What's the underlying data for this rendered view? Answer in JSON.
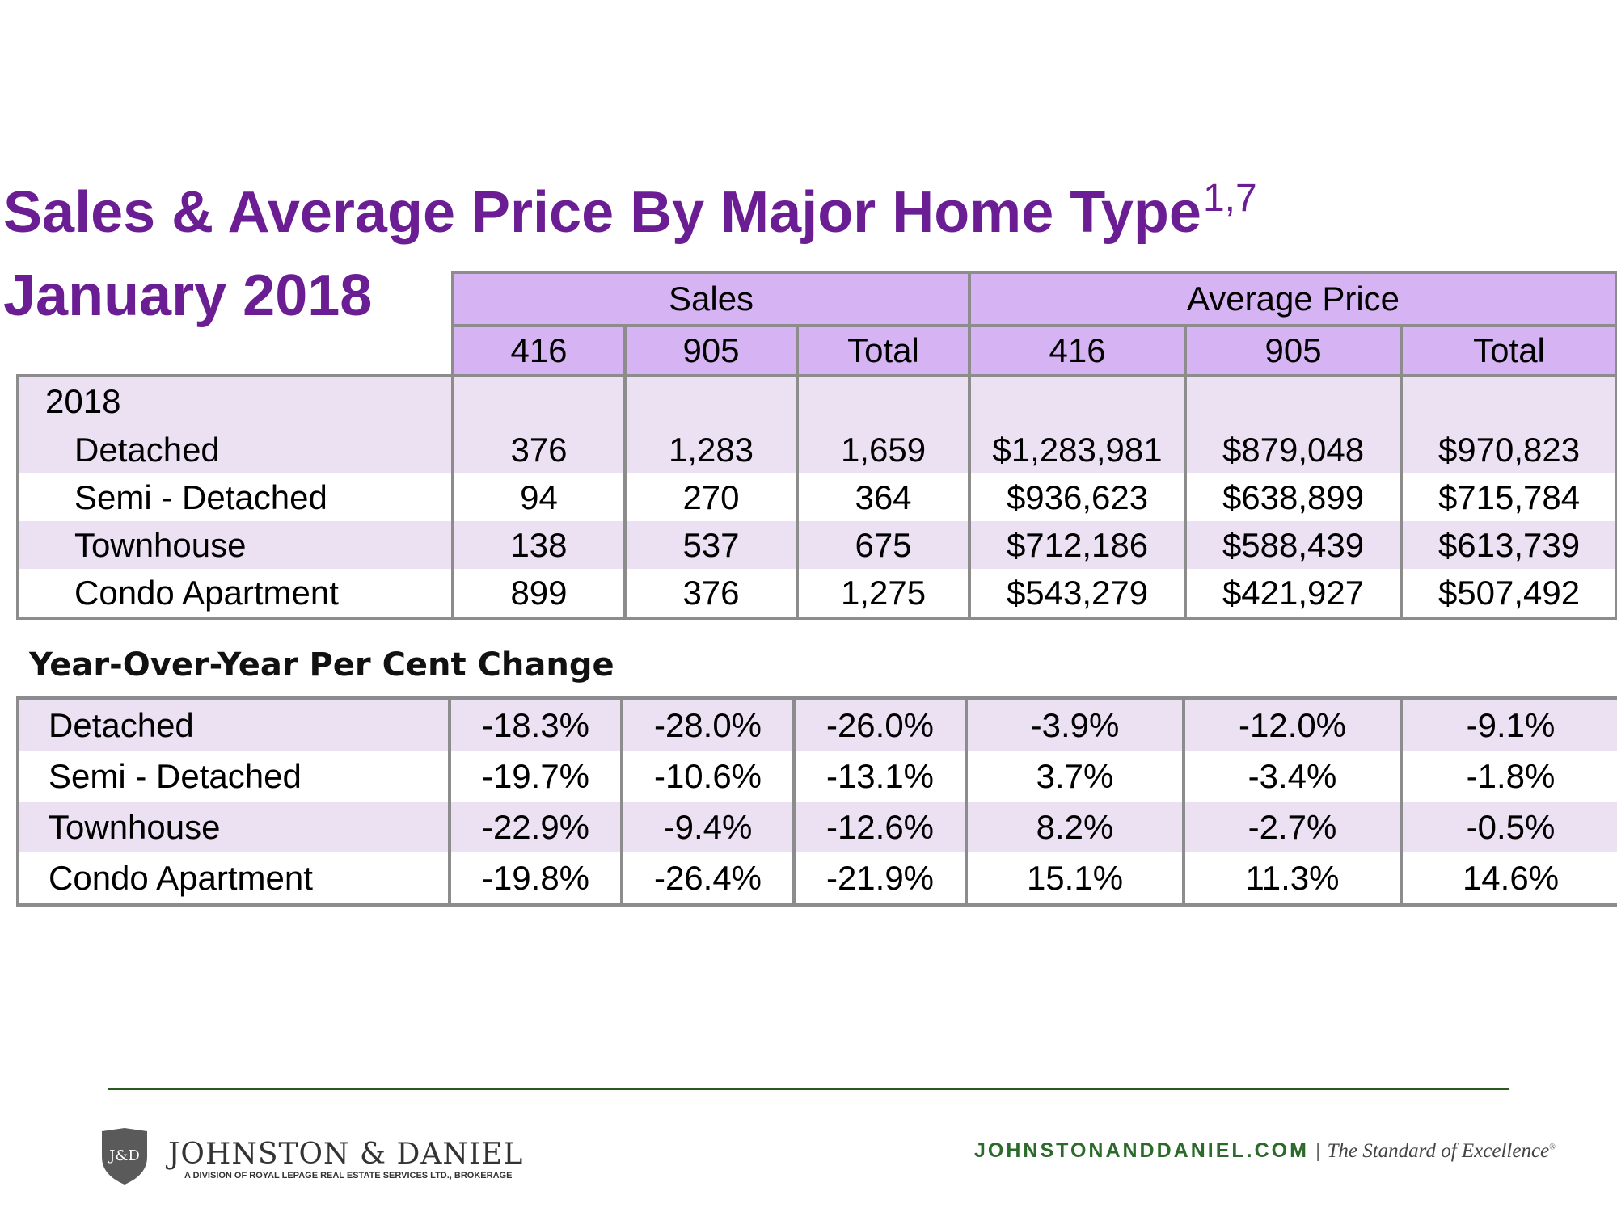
{
  "title": "Sales & Average Price By Major Home Type",
  "title_superscript": "1,7",
  "subtitle": "January 2018",
  "colors": {
    "title": "#6b1e93",
    "header_fill": "#d6b3f2",
    "row_shade": "#ece0f3",
    "border": "#8c8c8c",
    "footer_green": "#2b6a2b"
  },
  "table": {
    "groups": [
      "Sales",
      "Average Price"
    ],
    "columns": [
      "416",
      "905",
      "Total",
      "416",
      "905",
      "Total"
    ],
    "year_label": "2018",
    "rows": [
      {
        "label": "Detached",
        "values": [
          "376",
          "1,283",
          "1,659",
          "$1,283,981",
          "$879,048",
          "$970,823"
        ]
      },
      {
        "label": "Semi - Detached",
        "values": [
          "94",
          "270",
          "364",
          "$936,623",
          "$638,899",
          "$715,784"
        ]
      },
      {
        "label": "Townhouse",
        "values": [
          "138",
          "537",
          "675",
          "$712,186",
          "$588,439",
          "$613,739"
        ]
      },
      {
        "label": "Condo Apartment",
        "values": [
          "899",
          "376",
          "1,275",
          "$543,279",
          "$421,927",
          "$507,492"
        ]
      }
    ]
  },
  "yoy": {
    "title": "Year-Over-Year Per Cent Change",
    "rows": [
      {
        "label": "Detached",
        "values": [
          "-18.3%",
          "-28.0%",
          "-26.0%",
          "-3.9%",
          "-12.0%",
          "-9.1%"
        ]
      },
      {
        "label": "Semi - Detached",
        "values": [
          "-19.7%",
          "-10.6%",
          "-13.1%",
          "3.7%",
          "-3.4%",
          "-1.8%"
        ]
      },
      {
        "label": "Townhouse",
        "values": [
          "-22.9%",
          "-9.4%",
          "-12.6%",
          "8.2%",
          "-2.7%",
          "-0.5%"
        ]
      },
      {
        "label": "Condo Apartment",
        "values": [
          "-19.8%",
          "-26.4%",
          "-21.9%",
          "15.1%",
          "11.3%",
          "14.6%"
        ]
      }
    ]
  },
  "footer": {
    "logo_initials": "J&D",
    "brand": "JOHNSTON & DANIEL",
    "brand_sub": "A DIVISION OF ROYAL LEPAGE REAL ESTATE SERVICES LTD., BROKERAGE",
    "website": "JOHNSTONANDDANIEL.COM",
    "separator": "|",
    "tagline": "The Standard of Excellence",
    "tagline_mark": "®",
    "logo_icon": "shield-icon"
  }
}
